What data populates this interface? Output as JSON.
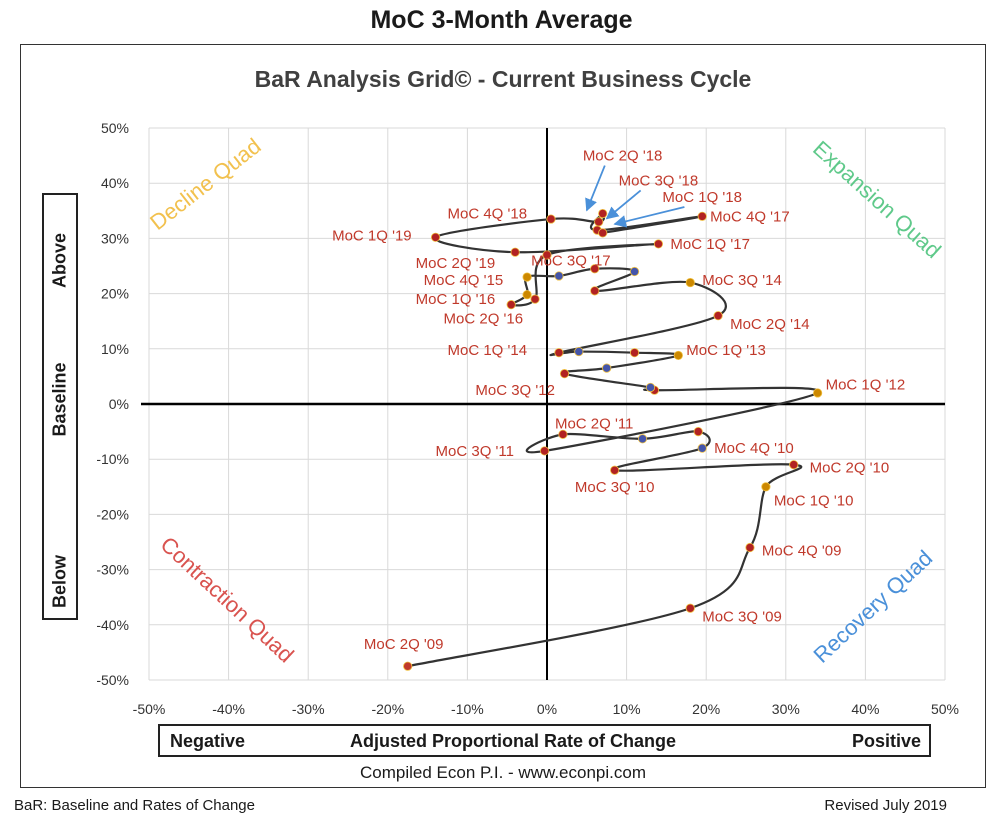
{
  "page": {
    "title": "MoC 3-Month Average",
    "compiled": "Compiled Econ P.I. - www.econpi.com",
    "footer_left": "BaR: Baseline and Rates of Change",
    "footer_right": "Revised July 2019"
  },
  "axis_boxes": {
    "y_top": "Above",
    "y_middle": "Baseline",
    "y_bottom": "Below",
    "x_left": "Negative",
    "x_center": "Adjusted Proportional Rate of Change",
    "x_right": "Positive"
  },
  "quadrants": {
    "decline": {
      "label": "Decline Quad",
      "color": "#f2c14e"
    },
    "expansion": {
      "label": "Expansion Quad",
      "color": "#5fc98a"
    },
    "contraction": {
      "label": "Contraction Quad",
      "color": "#d9534f"
    },
    "recovery": {
      "label": "Recovery Quad",
      "color": "#4a90d9"
    }
  },
  "chart_data": {
    "type": "scatter",
    "title": "BaR Analysis Grid© - Current Business Cycle",
    "xlabel": "Adjusted Proportional Rate of Change",
    "ylabel": "",
    "xlim": [
      -0.5,
      0.5
    ],
    "ylim": [
      -0.5,
      0.5
    ],
    "x_ticks": [
      "-50%",
      "-40%",
      "-30%",
      "-20%",
      "-10%",
      "0%",
      "10%",
      "20%",
      "30%",
      "40%",
      "50%"
    ],
    "y_ticks": [
      "50%",
      "40%",
      "30%",
      "20%",
      "10%",
      "0%",
      "-10%",
      "-20%",
      "-30%",
      "-40%",
      "-50%"
    ],
    "grid": true,
    "line_color": "#333333",
    "points": [
      {
        "x": -0.175,
        "y": -0.475,
        "label": "MoC 2Q '09",
        "dot": "#c0392b",
        "lx": -0.23,
        "ly": -0.435
      },
      {
        "x": 0.18,
        "y": -0.37,
        "label": "MoC 3Q '09",
        "dot": "#b22222",
        "lx": 0.195,
        "ly": -0.385
      },
      {
        "x": 0.255,
        "y": -0.26,
        "label": "MoC 4Q '09",
        "dot": "#b22222",
        "lx": 0.27,
        "ly": -0.265
      },
      {
        "x": 0.275,
        "y": -0.15,
        "label": "MoC 1Q '10",
        "dot": "#cc8800",
        "lx": 0.285,
        "ly": -0.175
      },
      {
        "x": 0.31,
        "y": -0.11,
        "label": "MoC 2Q '10",
        "dot": "#b22222",
        "lx": 0.33,
        "ly": -0.115
      },
      {
        "x": 0.085,
        "y": -0.12,
        "label": "MoC 3Q '10",
        "dot": "#b22222",
        "lx": 0.035,
        "ly": -0.15
      },
      {
        "x": 0.195,
        "y": -0.08,
        "label": "MoC 4Q '10",
        "dot": "#4455aa",
        "lx": 0.21,
        "ly": -0.08
      },
      {
        "x": 0.19,
        "y": -0.05,
        "label": "",
        "dot": "#b22222"
      },
      {
        "x": 0.12,
        "y": -0.063,
        "label": "",
        "dot": "#4455aa"
      },
      {
        "x": 0.02,
        "y": -0.055,
        "label": "MoC  2Q '11",
        "dot": "#b22222",
        "lx": 0.01,
        "ly": -0.035
      },
      {
        "x": -0.003,
        "y": -0.085,
        "label": "MoC  3Q '11",
        "dot": "#b22222",
        "lx": -0.14,
        "ly": -0.085
      },
      {
        "x": 0.34,
        "y": 0.02,
        "label": "MoC 1Q '12",
        "dot": "#cc8800",
        "lx": 0.35,
        "ly": 0.035
      },
      {
        "x": 0.135,
        "y": 0.025,
        "label": "",
        "dot": "#b22222"
      },
      {
        "x": 0.13,
        "y": 0.03,
        "label": "",
        "dot": "#4455aa"
      },
      {
        "x": 0.022,
        "y": 0.055,
        "label": "MoC 3Q '12",
        "dot": "#b22222",
        "lx": -0.09,
        "ly": 0.025
      },
      {
        "x": 0.075,
        "y": 0.065,
        "label": "",
        "dot": "#4455aa"
      },
      {
        "x": 0.165,
        "y": 0.088,
        "label": "MoC 1Q '13",
        "dot": "#cc8800",
        "lx": 0.175,
        "ly": 0.098
      },
      {
        "x": 0.11,
        "y": 0.093,
        "label": "",
        "dot": "#b22222"
      },
      {
        "x": 0.04,
        "y": 0.095,
        "label": "",
        "dot": "#4455aa"
      },
      {
        "x": 0.015,
        "y": 0.093,
        "label": "MoC 1Q '14",
        "dot": "#b22222",
        "lx": -0.125,
        "ly": 0.098
      },
      {
        "x": 0.215,
        "y": 0.16,
        "label": "MoC 2Q '14",
        "dot": "#b22222",
        "lx": 0.23,
        "ly": 0.145
      },
      {
        "x": 0.18,
        "y": 0.22,
        "label": "MoC 3Q '14",
        "dot": "#cc8800",
        "lx": 0.195,
        "ly": 0.225
      },
      {
        "x": 0.06,
        "y": 0.205,
        "label": "",
        "dot": "#b22222"
      },
      {
        "x": 0.11,
        "y": 0.24,
        "label": "",
        "dot": "#4455aa"
      },
      {
        "x": 0.06,
        "y": 0.245,
        "label": "",
        "dot": "#b22222"
      },
      {
        "x": 0.015,
        "y": 0.232,
        "label": "",
        "dot": "#4455aa"
      },
      {
        "x": -0.025,
        "y": 0.23,
        "label": "MoC 4Q '15",
        "dot": "#cc8800",
        "lx": -0.155,
        "ly": 0.225
      },
      {
        "x": -0.025,
        "y": 0.198,
        "label": "MoC 1Q '16",
        "dot": "#cc8800",
        "lx": -0.165,
        "ly": 0.19
      },
      {
        "x": -0.045,
        "y": 0.18,
        "label": "",
        "dot": "#b22222"
      },
      {
        "x": -0.015,
        "y": 0.19,
        "label": "MoC 2Q '16",
        "dot": "#b22222",
        "lx": -0.13,
        "ly": 0.155
      },
      {
        "x": 0.0,
        "y": 0.27,
        "label": "MoC 3Q '17",
        "dot": "#b22222",
        "lx": -0.02,
        "ly": 0.26
      },
      {
        "x": 0.14,
        "y": 0.29,
        "label": "MoC 1Q '17",
        "dot": "#b22222",
        "lx": 0.155,
        "ly": 0.29
      },
      {
        "x": -0.04,
        "y": 0.275,
        "label": "MoC 2Q '19",
        "dot": "#b22222",
        "lx": -0.165,
        "ly": 0.255
      },
      {
        "x": -0.14,
        "y": 0.302,
        "label": "MoC 1Q '19",
        "dot": "#b22222",
        "lx": -0.27,
        "ly": 0.305
      },
      {
        "x": 0.005,
        "y": 0.335,
        "label": "MoC 4Q '18",
        "dot": "#b22222",
        "lx": -0.125,
        "ly": 0.345
      },
      {
        "x": 0.065,
        "y": 0.33,
        "label": "",
        "dot": "#b22222"
      },
      {
        "x": 0.07,
        "y": 0.345,
        "label": "",
        "dot": "#b22222"
      },
      {
        "x": 0.063,
        "y": 0.315,
        "label": "",
        "dot": "#b22222"
      },
      {
        "x": 0.195,
        "y": 0.34,
        "label": "MoC 4Q '17",
        "dot": "#b22222",
        "lx": 0.205,
        "ly": 0.34
      },
      {
        "x": 0.07,
        "y": 0.31,
        "label": "",
        "dot": "#b22222"
      }
    ],
    "path_order": [
      0,
      1,
      2,
      3,
      4,
      5,
      6,
      7,
      8,
      9,
      10,
      11,
      12,
      13,
      14,
      15,
      16,
      17,
      18,
      19,
      20,
      21,
      22,
      23,
      24,
      25,
      26,
      27,
      28,
      29,
      30,
      31,
      32,
      33,
      34,
      35,
      36,
      37,
      38,
      39
    ],
    "annotations": [
      {
        "text": "MoC 2Q '18",
        "lx": 0.045,
        "ly": 0.45,
        "ax": 0.05,
        "ay": 0.34
      },
      {
        "text": "MoC 3Q '18",
        "lx": 0.09,
        "ly": 0.405,
        "ax": 0.075,
        "ay": 0.325
      },
      {
        "text": "MoC 1Q '18",
        "lx": 0.145,
        "ly": 0.375,
        "ax": 0.085,
        "ay": 0.315
      }
    ]
  }
}
